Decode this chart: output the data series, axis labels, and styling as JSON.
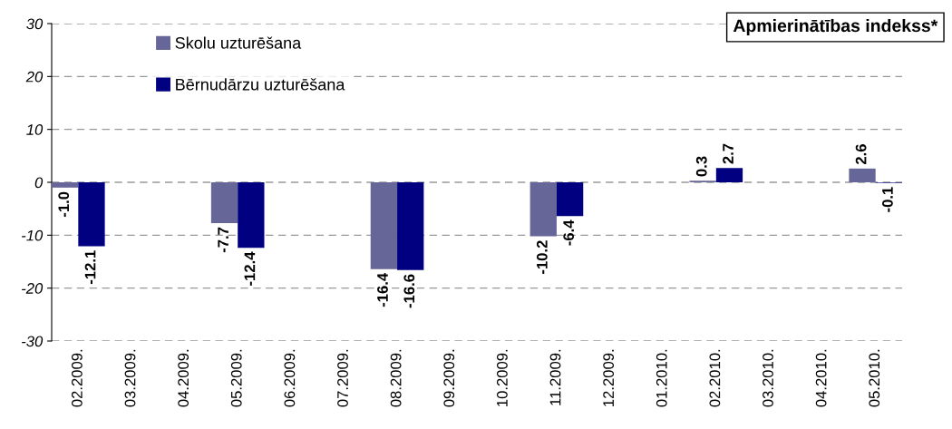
{
  "chart_data": {
    "type": "bar",
    "title": "Apmierinātības indekss*",
    "categories": [
      "02.2009.",
      "03.2009.",
      "04.2009.",
      "05.2009.",
      "06.2009.",
      "07.2009.",
      "08.2009.",
      "09.2009.",
      "10.2009.",
      "11.2009.",
      "12.2009.",
      "01.2010.",
      "02.2010.",
      "03.2010.",
      "04.2010.",
      "05.2010."
    ],
    "series": [
      {
        "name": "Skolu uzturēšana",
        "color": "#666699",
        "values": [
          -1.0,
          null,
          null,
          -7.7,
          null,
          null,
          -16.4,
          null,
          null,
          -10.2,
          null,
          null,
          0.3,
          null,
          null,
          2.6
        ],
        "value_labels": [
          "-1.0",
          null,
          null,
          "-7.7",
          null,
          null,
          "-16.4",
          null,
          null,
          "-10.2",
          null,
          null,
          "0.3",
          null,
          null,
          "2.6"
        ]
      },
      {
        "name": "Bērnudārzu uzturēšana",
        "color": "#000080",
        "values": [
          -12.1,
          null,
          null,
          -12.4,
          null,
          null,
          -16.6,
          null,
          null,
          -6.4,
          null,
          null,
          2.7,
          null,
          null,
          -0.1
        ],
        "value_labels": [
          "-12.1",
          null,
          null,
          "-12.4",
          null,
          null,
          "-16.6",
          null,
          null,
          "-6.4",
          null,
          null,
          "2.7",
          null,
          null,
          "-0.1"
        ]
      }
    ],
    "ylim": [
      -30,
      30
    ],
    "yticks": [
      -30,
      -20,
      -10,
      0,
      10,
      20,
      30
    ],
    "grid": "y",
    "legend": "top left"
  }
}
